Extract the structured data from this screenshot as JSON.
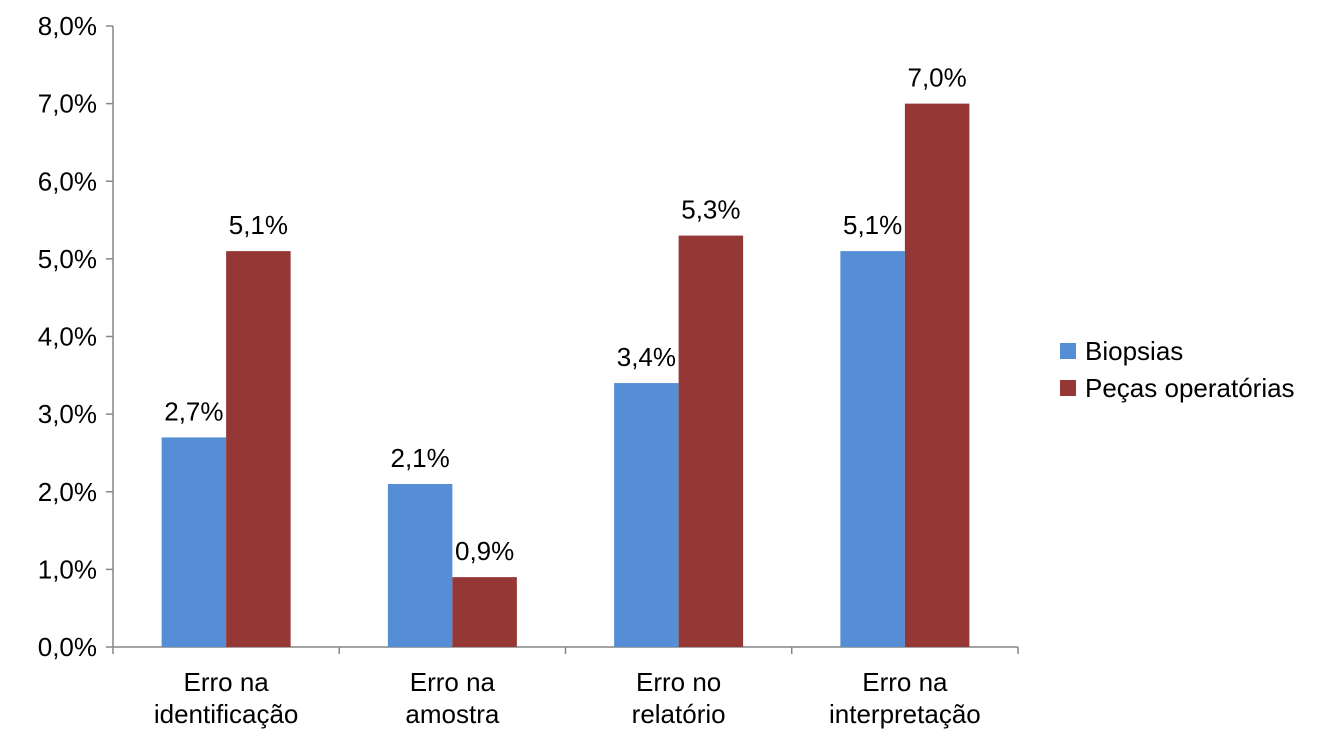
{
  "chart_data": {
    "type": "bar",
    "title": "",
    "xlabel": "",
    "ylabel": "",
    "categories": [
      [
        "Erro na",
        "identificação"
      ],
      [
        "Erro na",
        "amostra"
      ],
      [
        "Erro no",
        "relatório"
      ],
      [
        "Erro na",
        "interpretação"
      ]
    ],
    "series": [
      {
        "name": "Biopsias",
        "color": "#558ED5",
        "values": [
          2.7,
          2.1,
          3.4,
          5.1
        ],
        "labels": [
          "2,7%",
          "2,1%",
          "3,4%",
          "5,1%"
        ]
      },
      {
        "name": "Peças operatórias",
        "color": "#953735",
        "values": [
          5.1,
          0.9,
          5.3,
          7.0
        ],
        "labels": [
          "5,1%",
          "0,9%",
          "5,3%",
          "7,0%"
        ]
      }
    ],
    "ylim": [
      0,
      8
    ],
    "yticks": [
      0,
      1,
      2,
      3,
      4,
      5,
      6,
      7,
      8
    ],
    "ytick_labels": [
      "0,0%",
      "1,0%",
      "2,0%",
      "3,0%",
      "4,0%",
      "5,0%",
      "6,0%",
      "7,0%",
      "8,0%"
    ],
    "grid": false,
    "legend_position": "right"
  }
}
